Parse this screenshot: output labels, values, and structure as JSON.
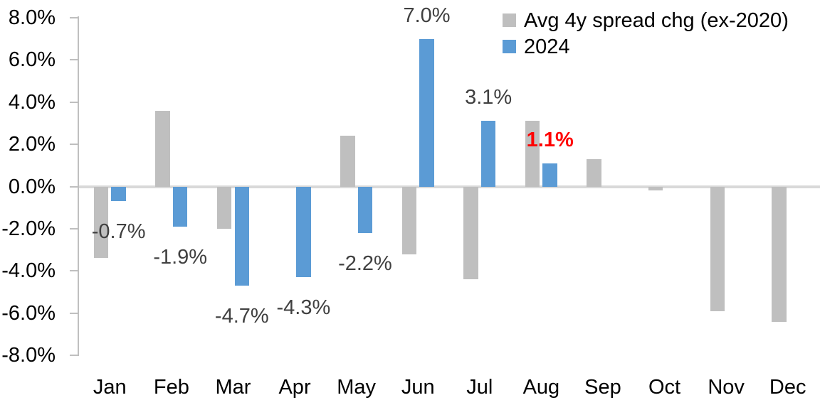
{
  "chart_data": {
    "type": "bar",
    "categories": [
      "Jan",
      "Feb",
      "Mar",
      "Apr",
      "May",
      "Jun",
      "Jul",
      "Aug",
      "Sep",
      "Oct",
      "Nov",
      "Dec"
    ],
    "series": [
      {
        "name": "Avg 4y spread chg (ex-2020)",
        "color": "#BFBFBF",
        "values": [
          -3.4,
          3.6,
          -2.0,
          0.0,
          2.4,
          -3.2,
          -4.4,
          3.1,
          1.3,
          -0.2,
          -5.9,
          -6.4
        ]
      },
      {
        "name": "2024",
        "color": "#5B9BD5",
        "values": [
          -0.7,
          -1.9,
          -4.7,
          -4.3,
          -2.2,
          7.0,
          3.1,
          1.1,
          null,
          null,
          null,
          null
        ]
      }
    ],
    "data_labels": [
      {
        "category": "Jan",
        "text": "-0.7%"
      },
      {
        "category": "Feb",
        "text": "-1.9%"
      },
      {
        "category": "Mar",
        "text": "-4.7%"
      },
      {
        "category": "Apr",
        "text": "-4.3%"
      },
      {
        "category": "May",
        "text": "-2.2%"
      },
      {
        "category": "Jun",
        "text": "7.0%"
      },
      {
        "category": "Jul",
        "text": "3.1%"
      },
      {
        "category": "Aug",
        "text": "1.1%",
        "color": "#FF0000",
        "bold": true
      }
    ],
    "label_color": "#404040",
    "y_axis": {
      "min": -8,
      "max": 8,
      "tick_step": 2,
      "tick_labels": [
        "8.0%",
        "6.0%",
        "4.0%",
        "2.0%",
        "0.0%",
        "-2.0%",
        "-4.0%",
        "-6.0%",
        "-8.0%"
      ]
    },
    "legend_position": "top-right",
    "grid": "zero-line-only",
    "colors": {
      "axis_line": "#BFBFBF",
      "zero_line": "#D9D9D9",
      "background": "#FFFFFF"
    }
  }
}
